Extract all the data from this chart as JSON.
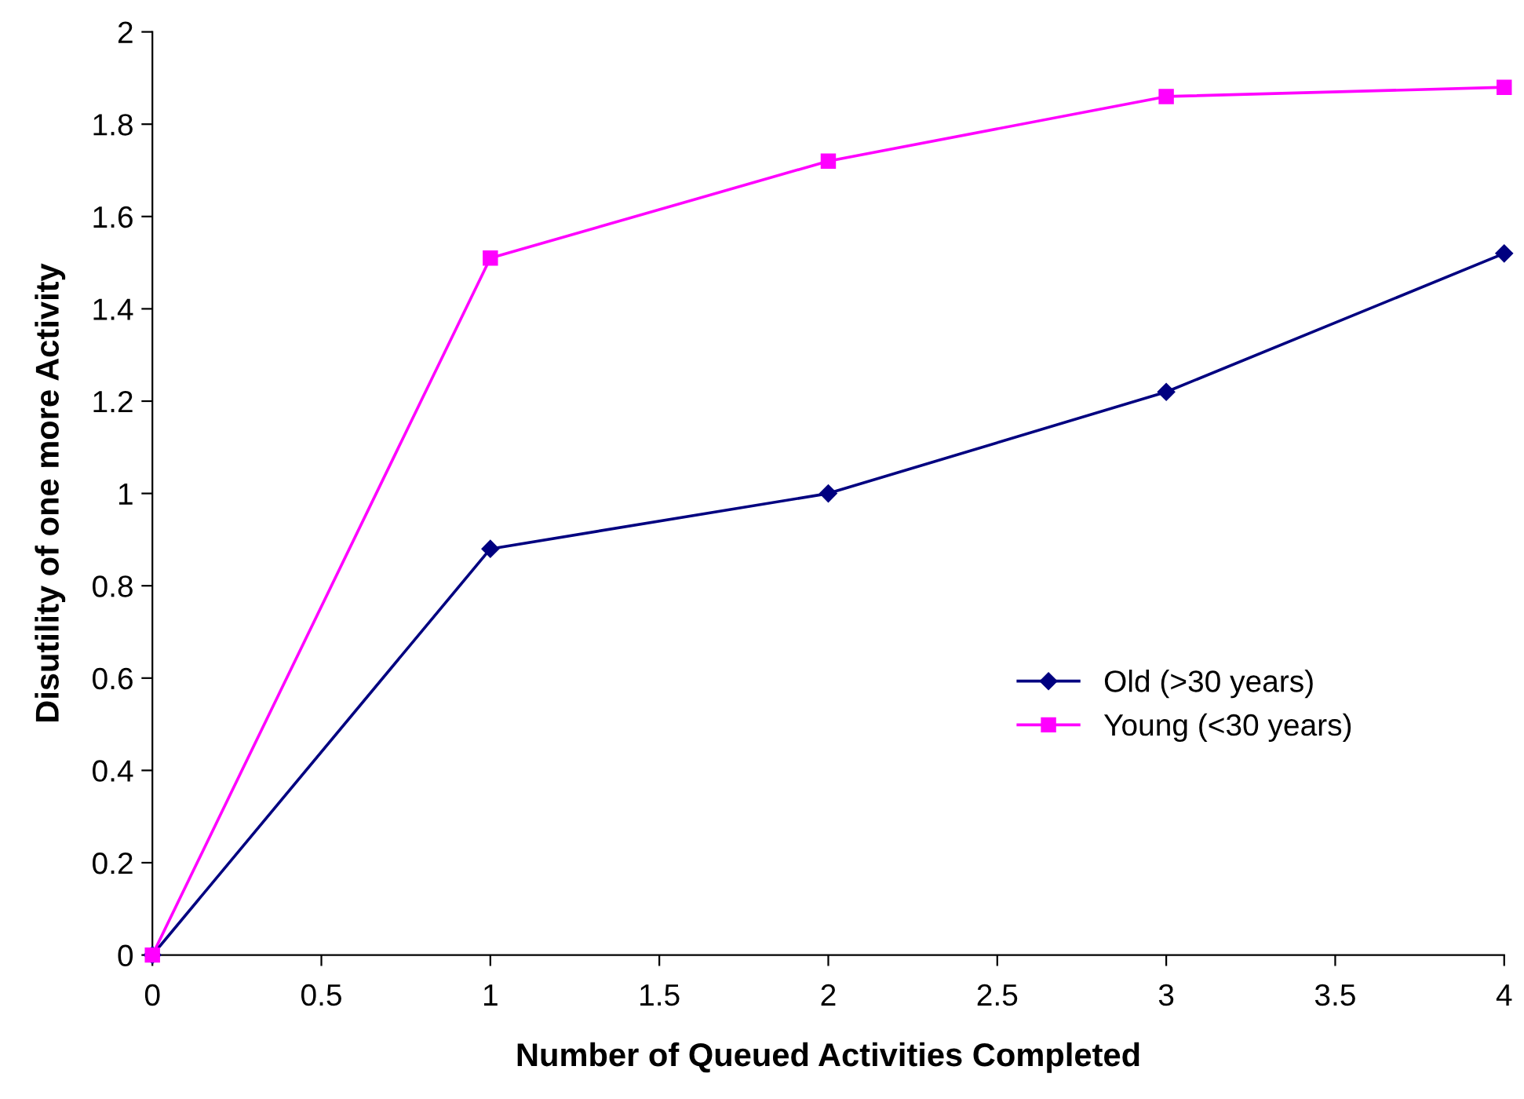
{
  "chart_data": {
    "type": "line",
    "xlabel": "Number of Queued Activities Completed",
    "ylabel": "Disutility of one more Activity",
    "x": [
      0,
      1,
      2,
      3,
      4
    ],
    "series": [
      {
        "name": "Old (>30 years)",
        "color": "#000080",
        "marker": "diamond",
        "values": [
          0,
          0.88,
          1.0,
          1.22,
          1.52
        ]
      },
      {
        "name": "Young (<30 years)",
        "color": "#ff00ff",
        "marker": "square",
        "values": [
          0,
          1.51,
          1.72,
          1.86,
          1.88
        ]
      }
    ],
    "xlim": [
      0,
      4
    ],
    "xticks": [
      0,
      0.5,
      1,
      1.5,
      2,
      2.5,
      3,
      3.5,
      4
    ],
    "ylim": [
      0,
      2
    ],
    "yticks": [
      0,
      0.2,
      0.4,
      0.6,
      0.8,
      1,
      1.2,
      1.4,
      1.6,
      1.8,
      2
    ],
    "grid": false,
    "legend": "right",
    "line_style": "solid"
  }
}
